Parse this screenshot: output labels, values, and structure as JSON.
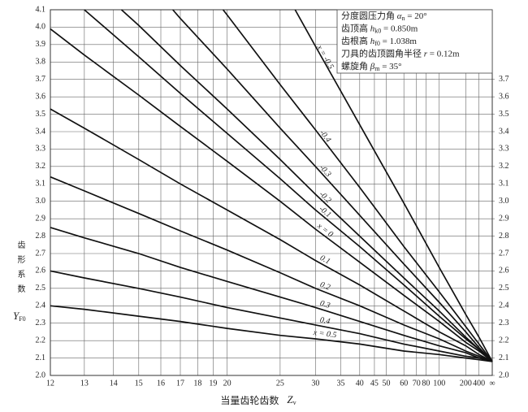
{
  "chart_data": {
    "type": "line",
    "xscale": "reciprocal",
    "xlim": [
      12,
      null
    ],
    "ylim": [
      2.0,
      4.1
    ],
    "y2lim": [
      2.0,
      4.1
    ],
    "grid": true,
    "color": "#111111",
    "xlabel": "当量齿轮齿数",
    "xlabel_symbol": "Z",
    "xlabel_subscript": "v",
    "ylabel": "齿形系数",
    "ylabel_symbol": "Y",
    "ylabel_subscript": "F0",
    "limit_value": 2.08,
    "xticks": [
      12,
      13,
      14,
      15,
      16,
      17,
      18,
      19,
      20,
      25,
      30,
      35,
      40,
      45,
      50,
      60,
      70,
      80,
      100,
      200,
      400,
      {
        "value": null,
        "label": "∞"
      }
    ],
    "yticks": [
      {
        "value": 2.0,
        "label": "2.0"
      },
      2.1,
      2.2,
      2.3,
      2.4,
      2.5,
      2.6,
      2.7,
      2.8,
      2.9,
      {
        "value": 3.0,
        "label": "3.0"
      },
      3.1,
      3.2,
      3.3,
      3.4,
      3.5,
      3.6,
      3.7,
      3.8,
      3.9,
      {
        "value": 4.0,
        "label": "4.0"
      },
      4.1
    ],
    "y2ticks": [
      {
        "value": 2.0,
        "label": "2.0"
      },
      2.1,
      2.2,
      2.3,
      2.4,
      2.5,
      2.6,
      2.7,
      2.8,
      2.9,
      {
        "value": 3.0,
        "label": "3.0"
      },
      3.1,
      3.2,
      3.3,
      3.4,
      3.5,
      3.6,
      3.7
    ],
    "annotations": [
      {
        "prefix": "分度圆压力角 ",
        "symbol": "α",
        "subscript": "n",
        "suffix": " = 20°"
      },
      {
        "prefix": "齿顶高 ",
        "symbol": "h",
        "subscript": "k0",
        "suffix": " = 0.850m"
      },
      {
        "prefix": "齿根高 ",
        "symbol": "h",
        "subscript": "f0",
        "suffix": " = 1.038m"
      },
      {
        "prefix": "刀具的齿顶圆角半径 ",
        "symbol": "r",
        "subscript": "",
        "suffix": " = 0.12m"
      },
      {
        "prefix": "螺旋角 ",
        "symbol": "β",
        "subscript": "m",
        "suffix": " = 35°"
      }
    ],
    "series": [
      {
        "name": "x = -0.5",
        "x": [
          26.9,
          30,
          40,
          60,
          100,
          200,
          400
        ],
        "values": [
          4.1,
          3.89,
          3.44,
          2.99,
          2.62,
          2.35,
          2.22
        ]
      },
      {
        "name": "-0.4",
        "x": [
          19.7,
          20,
          25,
          30,
          40,
          60,
          100,
          200,
          400
        ],
        "values": [
          4.1,
          4.07,
          3.67,
          3.41,
          3.08,
          2.74,
          2.48,
          2.28,
          2.18
        ]
      },
      {
        "name": "-0.3",
        "x": [
          16.6,
          17,
          20,
          25,
          30,
          40,
          60,
          100,
          200,
          400
        ],
        "values": [
          4.1,
          4.05,
          3.76,
          3.42,
          3.2,
          2.92,
          2.64,
          2.42,
          2.25,
          2.16
        ]
      },
      {
        "name": "-0.2",
        "x": [
          14.3,
          15,
          17,
          20,
          25,
          30,
          40,
          60,
          100,
          200,
          400
        ],
        "values": [
          4.1,
          4.01,
          3.78,
          3.53,
          3.24,
          3.04,
          2.8,
          2.56,
          2.37,
          2.22,
          2.15
        ]
      },
      {
        "name": "-0.1",
        "x": [
          13,
          15,
          17,
          20,
          25,
          30,
          40,
          60,
          100,
          200,
          400
        ],
        "values": [
          4.1,
          3.83,
          3.62,
          3.39,
          3.13,
          2.95,
          2.74,
          2.52,
          2.34,
          2.21,
          2.15
        ]
      },
      {
        "name": "x = 0",
        "x": [
          12,
          13,
          15,
          17,
          20,
          25,
          30,
          40,
          60,
          100,
          200,
          400
        ],
        "values": [
          3.99,
          3.84,
          3.61,
          3.43,
          3.23,
          3.0,
          2.84,
          2.65,
          2.46,
          2.31,
          2.19,
          2.14
        ]
      },
      {
        "name": "0.1",
        "x": [
          12,
          13,
          15,
          17,
          20,
          25,
          30,
          40,
          60,
          100,
          200,
          400
        ],
        "values": [
          3.53,
          3.42,
          3.24,
          3.1,
          2.95,
          2.78,
          2.66,
          2.52,
          2.37,
          2.25,
          2.17,
          2.12
        ]
      },
      {
        "name": "0.2",
        "x": [
          12,
          13,
          15,
          17,
          20,
          25,
          30,
          40,
          60,
          100,
          200,
          400
        ],
        "values": [
          3.14,
          3.06,
          2.93,
          2.83,
          2.72,
          2.59,
          2.5,
          2.4,
          2.29,
          2.21,
          2.14,
          2.11
        ]
      },
      {
        "name": "0.3",
        "x": [
          12,
          13,
          15,
          17,
          20,
          25,
          30,
          40,
          60,
          100,
          200,
          400
        ],
        "values": [
          2.85,
          2.79,
          2.7,
          2.62,
          2.54,
          2.45,
          2.39,
          2.31,
          2.23,
          2.17,
          2.13,
          2.1
        ]
      },
      {
        "name": "0.4",
        "x": [
          12,
          13,
          15,
          17,
          20,
          25,
          30,
          40,
          60,
          100,
          200,
          400
        ],
        "values": [
          2.6,
          2.56,
          2.5,
          2.45,
          2.39,
          2.33,
          2.29,
          2.24,
          2.18,
          2.14,
          2.11,
          2.1
        ]
      },
      {
        "name": "x = 0.5",
        "x": [
          12,
          13,
          15,
          17,
          20,
          25,
          30,
          40,
          60,
          100,
          200,
          400
        ],
        "values": [
          2.4,
          2.38,
          2.34,
          2.31,
          2.27,
          2.23,
          2.21,
          2.18,
          2.14,
          2.12,
          2.1,
          2.09
        ]
      }
    ]
  }
}
